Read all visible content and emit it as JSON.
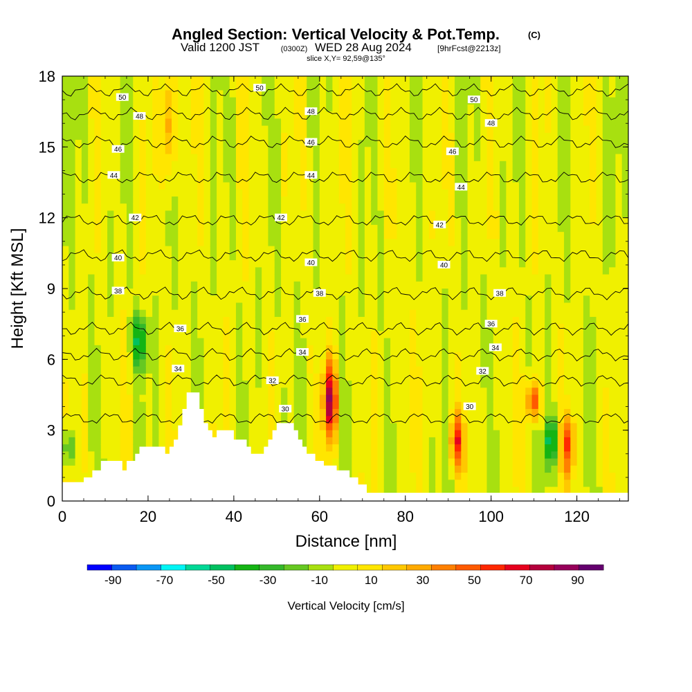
{
  "title": {
    "main": "Angled Section: Vertical Velocity & Pot.Temp.",
    "copyright": "(C)",
    "valid_prefix": "Valid 1200 JST",
    "zulu": "(0300Z)",
    "valid_date": "WED 28 Aug 2024",
    "forecast": "[9hrFcst@2213z]",
    "slice": "slice X,Y= 92,59@135°"
  },
  "chart_data": {
    "type": "heatmap",
    "xlabel": "Distance [nm]",
    "ylabel": "Height [Kft MSL]",
    "xlim": [
      0,
      132
    ],
    "ylim": [
      0,
      18
    ],
    "x_ticks": [
      "0",
      "20",
      "40",
      "60",
      "80",
      "100",
      "120"
    ],
    "y_ticks": [
      "0",
      "3",
      "6",
      "9",
      "12",
      "15",
      "18"
    ],
    "colorbar": {
      "label": "Vertical Velocity [cm/s]",
      "tick_labels": [
        "-90",
        "-70",
        "-50",
        "-30",
        "-10",
        "10",
        "30",
        "50",
        "70",
        "90"
      ],
      "bounds": [
        -100,
        -90,
        -80,
        -70,
        -60,
        -50,
        -40,
        -30,
        -20,
        -10,
        0,
        10,
        20,
        30,
        40,
        50,
        60,
        70,
        80,
        90,
        100
      ],
      "colors": [
        "#0000ff",
        "#0a5af0",
        "#0a96f5",
        "#00f5f5",
        "#00d896",
        "#00c060",
        "#14b414",
        "#34b82a",
        "#66c822",
        "#a8e010",
        "#f0f000",
        "#ffe600",
        "#ffc800",
        "#ffaa00",
        "#ff8000",
        "#ff5a00",
        "#ff2800",
        "#e6001e",
        "#b4003c",
        "#96005a",
        "#64006e"
      ]
    },
    "updraft_cores": [
      {
        "x": 25,
        "z_from": 14,
        "z_to": 18,
        "w": 40
      },
      {
        "x": 62.5,
        "z_from": 3,
        "z_to": 5.5,
        "w": 85
      },
      {
        "x": 92,
        "z_from": 1.8,
        "z_to": 3.3,
        "w": 60
      },
      {
        "x": 110,
        "z_from": 3.8,
        "z_to": 4.6,
        "w": 60
      },
      {
        "x": 118,
        "z_from": 1.5,
        "z_to": 3.2,
        "w": 50
      }
    ],
    "downdraft_cores": [
      {
        "x": 18,
        "z_from": 6,
        "z_to": 7.5,
        "w": -50
      },
      {
        "x": 114,
        "z_from": 1.9,
        "z_to": 3.1,
        "w": -50
      },
      {
        "x": 1.5,
        "z_from": 1.8,
        "z_to": 2.6,
        "w": -30
      }
    ],
    "theta_contours": [
      {
        "label": "30",
        "z": 3.5
      },
      {
        "label": "32",
        "z": 5.1
      },
      {
        "label": "34",
        "z": 6.2
      },
      {
        "label": "36",
        "z": 7.3
      },
      {
        "label": "38",
        "z": 8.8
      },
      {
        "label": "40",
        "z": 10.4
      },
      {
        "label": "42",
        "z": 11.9
      },
      {
        "label": "44",
        "z": 13.7
      },
      {
        "label": "46",
        "z": 15.2
      },
      {
        "label": "48",
        "z": 16.4
      },
      {
        "label": "50",
        "z": 17.4
      }
    ],
    "theta_labels": [
      {
        "text": "50",
        "x": 14,
        "z": 17.1
      },
      {
        "text": "50",
        "x": 46,
        "z": 17.5
      },
      {
        "text": "50",
        "x": 96,
        "z": 17.0
      },
      {
        "text": "48",
        "x": 18,
        "z": 16.3
      },
      {
        "text": "48",
        "x": 58,
        "z": 16.5
      },
      {
        "text": "48",
        "x": 100,
        "z": 16.0
      },
      {
        "text": "46",
        "x": 13,
        "z": 14.9
      },
      {
        "text": "46",
        "x": 58,
        "z": 15.2
      },
      {
        "text": "46",
        "x": 91,
        "z": 14.8
      },
      {
        "text": "44",
        "x": 12,
        "z": 13.8
      },
      {
        "text": "44",
        "x": 58,
        "z": 13.8
      },
      {
        "text": "44",
        "x": 93,
        "z": 13.3
      },
      {
        "text": "42",
        "x": 17,
        "z": 12.0
      },
      {
        "text": "42",
        "x": 51,
        "z": 12.0
      },
      {
        "text": "42",
        "x": 88,
        "z": 11.7
      },
      {
        "text": "40",
        "x": 13,
        "z": 10.3
      },
      {
        "text": "40",
        "x": 58,
        "z": 10.1
      },
      {
        "text": "40",
        "x": 89,
        "z": 10.0
      },
      {
        "text": "38",
        "x": 13,
        "z": 8.9
      },
      {
        "text": "38",
        "x": 60,
        "z": 8.8
      },
      {
        "text": "38",
        "x": 102,
        "z": 8.8
      },
      {
        "text": "36",
        "x": 27.5,
        "z": 7.3
      },
      {
        "text": "36",
        "x": 56,
        "z": 7.7
      },
      {
        "text": "36",
        "x": 100,
        "z": 7.5
      },
      {
        "text": "34",
        "x": 27,
        "z": 5.6
      },
      {
        "text": "34",
        "x": 56,
        "z": 6.3
      },
      {
        "text": "34",
        "x": 101,
        "z": 6.5
      },
      {
        "text": "32",
        "x": 49,
        "z": 5.1
      },
      {
        "text": "32",
        "x": 98,
        "z": 5.5
      },
      {
        "text": "30",
        "x": 52,
        "z": 3.9
      },
      {
        "text": "30",
        "x": 95,
        "z": 4.0
      }
    ],
    "terrain": [
      [
        0,
        0.8
      ],
      [
        5,
        1.0
      ],
      [
        7,
        1.3
      ],
      [
        9,
        1.7
      ],
      [
        13,
        1.7
      ],
      [
        14,
        1.3
      ],
      [
        15,
        1.7
      ],
      [
        17,
        2.0
      ],
      [
        18,
        2.3
      ],
      [
        23,
        2.3
      ],
      [
        24,
        2.0
      ],
      [
        25,
        2.3
      ],
      [
        26,
        2.6
      ],
      [
        27,
        3.2
      ],
      [
        28,
        3.9
      ],
      [
        29,
        4.6
      ],
      [
        31,
        4.6
      ],
      [
        32,
        3.9
      ],
      [
        33,
        3.3
      ],
      [
        34,
        3.0
      ],
      [
        35,
        2.7
      ],
      [
        36,
        3.0
      ],
      [
        39,
        3.0
      ],
      [
        40,
        2.6
      ],
      [
        43,
        2.3
      ],
      [
        44,
        2.0
      ],
      [
        46,
        2.0
      ],
      [
        47,
        2.3
      ],
      [
        48,
        2.6
      ],
      [
        49,
        3.0
      ],
      [
        50,
        3.3
      ],
      [
        53,
        3.3
      ],
      [
        54,
        3.0
      ],
      [
        55,
        2.6
      ],
      [
        56,
        2.3
      ],
      [
        57,
        2.0
      ],
      [
        59,
        1.7
      ],
      [
        61,
        1.5
      ],
      [
        64,
        1.3
      ],
      [
        67,
        1.0
      ],
      [
        69,
        0.7
      ],
      [
        71,
        0.35
      ],
      [
        132,
        0.35
      ]
    ]
  }
}
